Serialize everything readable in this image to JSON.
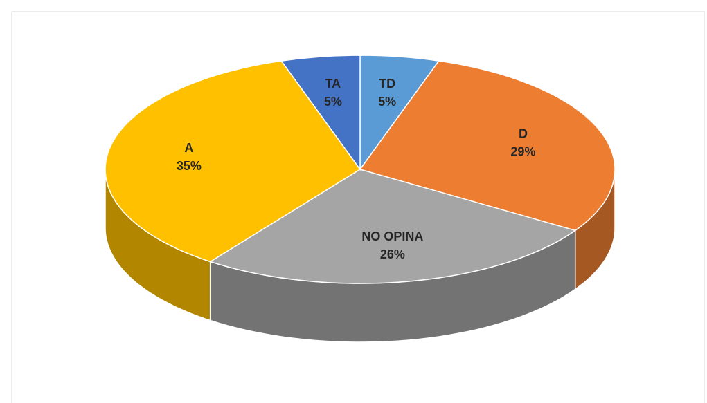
{
  "chart_data": {
    "type": "pie",
    "categories": [
      "TD",
      "D",
      "NO OPINA",
      "A",
      "TA"
    ],
    "values": [
      5,
      29,
      26,
      35,
      5
    ],
    "value_labels": [
      "5%",
      "29%",
      "26%",
      "35%",
      "5%"
    ],
    "colors": [
      "#5b9bd5",
      "#ed7d31",
      "#a5a5a5",
      "#ffc000",
      "#4472c4"
    ]
  }
}
